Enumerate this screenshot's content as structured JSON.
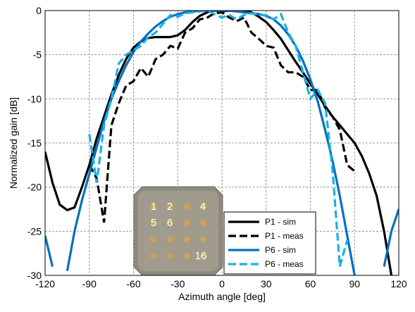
{
  "chart_data": {
    "type": "line",
    "xlabel": "Azimuth angle [deg]",
    "ylabel": "Normalized gain [dB]",
    "x": [
      -120,
      -115,
      -110,
      -105,
      -100,
      -95,
      -90,
      -85,
      -80,
      -75,
      -70,
      -65,
      -60,
      -55,
      -50,
      -45,
      -40,
      -35,
      -30,
      -25,
      -20,
      -15,
      -10,
      -5,
      0,
      5,
      10,
      15,
      20,
      25,
      30,
      35,
      40,
      45,
      50,
      55,
      60,
      65,
      70,
      75,
      80,
      85,
      90,
      95,
      100,
      105,
      110,
      115,
      120
    ],
    "xlim": [
      -120,
      120
    ],
    "xticks": [
      -120,
      -90,
      -60,
      -30,
      0,
      30,
      60,
      90,
      120
    ],
    "ylim": [
      -30,
      0
    ],
    "yticks": [
      -30,
      -25,
      -20,
      -15,
      -10,
      -5,
      0
    ],
    "grid": true,
    "legend": "lower right",
    "series": [
      {
        "name": "P1 - sim",
        "color": "#000000",
        "style": "solid",
        "values": [
          -16,
          -19.5,
          -22,
          -22.6,
          -22.3,
          -20,
          -17.5,
          -14.5,
          -12,
          -9.5,
          -7.3,
          -5.5,
          -4.2,
          -3.5,
          -3.1,
          -3,
          -3,
          -3,
          -2.8,
          -2.2,
          -1.3,
          -0.6,
          -0.2,
          0,
          -0.1,
          0,
          0,
          0,
          -0.2,
          -0.7,
          -1.3,
          -2.2,
          -3.2,
          -4.5,
          -5.8,
          -7,
          -8.3,
          -9.5,
          -10.8,
          -12,
          -13,
          -14,
          -15,
          -16.5,
          -18.5,
          -21,
          -25,
          -30,
          null
        ]
      },
      {
        "name": "P1 - meas",
        "color": "#000000",
        "style": "dashed",
        "values": [
          null,
          null,
          null,
          null,
          null,
          null,
          -17.5,
          -19,
          -24,
          -13,
          -10.5,
          -8.5,
          -8,
          -6.5,
          -7.5,
          -5.5,
          -5,
          -4,
          -4.3,
          -2.5,
          -2,
          -1,
          -0.8,
          -0.3,
          -0.2,
          -0.8,
          -1.2,
          -0.8,
          -2.5,
          -3.2,
          -4,
          -4.2,
          -6.2,
          -7,
          -7,
          -7.5,
          -9,
          -9,
          -11,
          -12,
          -13.5,
          -17.5,
          -18.2,
          null,
          null,
          null,
          null,
          null,
          null
        ]
      },
      {
        "name": "P6 - sim",
        "color": "#0070c0",
        "style": "solid",
        "values": [
          -25.5,
          -29,
          null,
          -29.5,
          -25,
          -21.5,
          -18.5,
          -15.5,
          -12.5,
          -10,
          -8,
          -6.2,
          -4.7,
          -3.5,
          -2.6,
          -1.8,
          -1.2,
          -0.7,
          -0.4,
          -0.2,
          -0.1,
          0,
          0,
          0,
          0,
          0,
          -0.1,
          -0.2,
          -0.3,
          -0.4,
          -0.6,
          -1,
          -1.7,
          -2.7,
          -4,
          -5.7,
          -7.8,
          -10.3,
          -13.5,
          -17,
          -21,
          -25.5,
          -30,
          null,
          null,
          null,
          -29,
          -25,
          -22.5
        ]
      },
      {
        "name": "P6 - meas",
        "color": "#1ab0e8",
        "style": "dashed",
        "values": [
          null,
          null,
          null,
          null,
          null,
          null,
          -14,
          -19.5,
          -13,
          -10,
          -6,
          -5,
          -4.5,
          -4,
          -3,
          -2.5,
          -1.5,
          -0.5,
          -0.7,
          -0.3,
          -0.2,
          -0.1,
          0,
          -0.4,
          -0.8,
          -0.5,
          -1,
          -0.5,
          -0.3,
          -0.5,
          -0.5,
          -1,
          -0.4,
          -2.5,
          -4,
          -7,
          -10,
          -9,
          -10.5,
          -18,
          -29,
          -26,
          null,
          null,
          null,
          null,
          null,
          null,
          null
        ]
      }
    ],
    "inset": {
      "labels": [
        "1",
        "2",
        "4",
        "5",
        "6",
        "16"
      ]
    }
  }
}
